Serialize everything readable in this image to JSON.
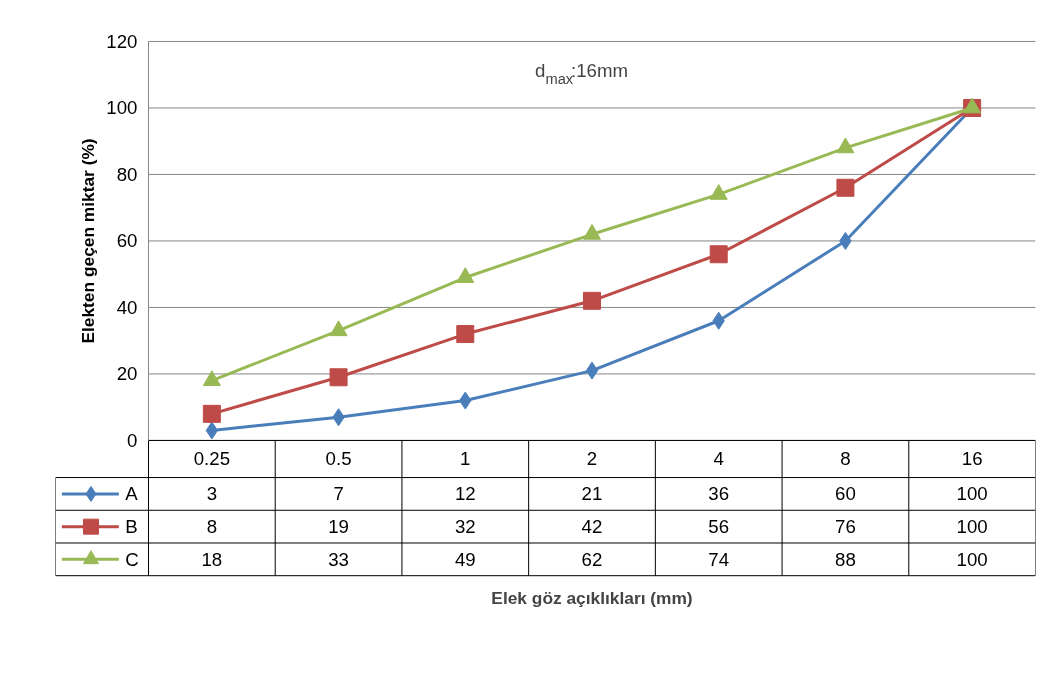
{
  "chart_data": {
    "type": "line",
    "ylabel": "Elekten geçen miktar (%)",
    "annotations": [
      "d$_{max}$:16mm",
      "Elek göz açıklıkları (mm)"
    ],
    "categories": [
      "0.25",
      "0.5",
      "1",
      "2",
      "4",
      "8",
      "16"
    ],
    "series": [
      {
        "name": "A",
        "color": "#4a7ebb",
        "marker": "diamond",
        "values": [
          3,
          7,
          12,
          21,
          36,
          60,
          100
        ]
      },
      {
        "name": "B",
        "color": "#be4b48",
        "marker": "square",
        "values": [
          8,
          19,
          32,
          42,
          56,
          76,
          100
        ]
      },
      {
        "name": "C",
        "color": "#98b954",
        "marker": "triangle",
        "values": [
          18,
          33,
          49,
          62,
          74,
          88,
          100
        ]
      }
    ],
    "ylim": [
      0,
      120
    ],
    "yticks": [
      0,
      20,
      40,
      60,
      80,
      100,
      120
    ],
    "grid": "y",
    "legend": "bottom left",
    "data_labels": true
  }
}
